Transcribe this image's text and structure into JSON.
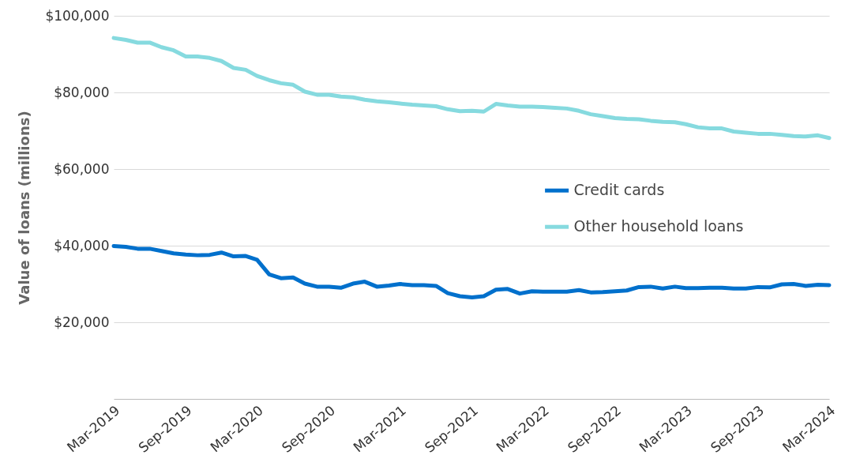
{
  "chart_data": {
    "type": "line",
    "ylabel": "Value of loans (millions)",
    "x": [
      "2019-03",
      "2019-04",
      "2019-05",
      "2019-06",
      "2019-07",
      "2019-08",
      "2019-09",
      "2019-10",
      "2019-11",
      "2019-12",
      "2020-01",
      "2020-02",
      "2020-03",
      "2020-04",
      "2020-05",
      "2020-06",
      "2020-07",
      "2020-08",
      "2020-09",
      "2020-10",
      "2020-11",
      "2020-12",
      "2021-01",
      "2021-02",
      "2021-03",
      "2021-04",
      "2021-05",
      "2021-06",
      "2021-07",
      "2021-08",
      "2021-09",
      "2021-10",
      "2021-11",
      "2021-12",
      "2022-01",
      "2022-02",
      "2022-03",
      "2022-04",
      "2022-05",
      "2022-06",
      "2022-07",
      "2022-08",
      "2022-09",
      "2022-10",
      "2022-11",
      "2022-12",
      "2023-01",
      "2023-02",
      "2023-03",
      "2023-04",
      "2023-05",
      "2023-06",
      "2023-07",
      "2023-08",
      "2023-09",
      "2023-10",
      "2023-11",
      "2023-12",
      "2024-01",
      "2024-02",
      "2024-03"
    ],
    "series": [
      {
        "name": "Credit cards",
        "color": "#0070cc",
        "values": [
          39900,
          39700,
          39200,
          39200,
          38600,
          38000,
          37700,
          37500,
          37600,
          38200,
          37200,
          37300,
          36300,
          32500,
          31500,
          31700,
          30100,
          29300,
          29300,
          29000,
          30100,
          30600,
          29300,
          29600,
          30000,
          29700,
          29700,
          29500,
          27600,
          26800,
          26500,
          26800,
          28500,
          28700,
          27500,
          28100,
          28000,
          28000,
          28000,
          28400,
          27800,
          27900,
          28100,
          28300,
          29200,
          29300,
          28800,
          29300,
          28900,
          28900,
          29000,
          29000,
          28800,
          28800,
          29200,
          29100,
          29900,
          30000,
          29500,
          29800,
          29700
        ]
      },
      {
        "name": "Other household loans",
        "color": "#86dadf",
        "values": [
          94200,
          93700,
          93000,
          93000,
          91800,
          91000,
          89400,
          89400,
          89000,
          88200,
          86400,
          85900,
          84300,
          83200,
          82400,
          82000,
          80200,
          79400,
          79400,
          78900,
          78700,
          78100,
          77700,
          77400,
          77100,
          76800,
          76600,
          76400,
          75600,
          75100,
          75200,
          75000,
          77000,
          76600,
          76300,
          76300,
          76200,
          76000,
          75800,
          75200,
          74300,
          73800,
          73300,
          73100,
          73000,
          72600,
          72300,
          72200,
          71700,
          70900,
          70600,
          70600,
          69800,
          69500,
          69200,
          69200,
          68900,
          68600,
          68500,
          68800,
          68100
        ]
      }
    ],
    "xlim": [
      "2019-03",
      "2024-03"
    ],
    "xticks": [
      {
        "value": "2019-03",
        "label": "Mar-2019"
      },
      {
        "value": "2019-09",
        "label": "Sep-2019"
      },
      {
        "value": "2020-03",
        "label": "Mar-2020"
      },
      {
        "value": "2020-09",
        "label": "Sep-2020"
      },
      {
        "value": "2021-03",
        "label": "Mar-2021"
      },
      {
        "value": "2021-09",
        "label": "Sep-2021"
      },
      {
        "value": "2022-03",
        "label": "Mar-2022"
      },
      {
        "value": "2022-09",
        "label": "Sep-2022"
      },
      {
        "value": "2023-03",
        "label": "Mar-2023"
      },
      {
        "value": "2023-09",
        "label": "Sep-2023"
      },
      {
        "value": "2024-03",
        "label": "Mar-2024"
      }
    ],
    "ylim": [
      0,
      100000
    ],
    "yticks": [
      {
        "value": 20000,
        "label": "$20,000"
      },
      {
        "value": 40000,
        "label": "$40,000"
      },
      {
        "value": 60000,
        "label": "$60,000"
      },
      {
        "value": 80000,
        "label": "$80,000"
      },
      {
        "value": 100000,
        "label": "$100,000"
      }
    ],
    "grid": "y",
    "legend": "right",
    "line_style": "solid",
    "marker": "none"
  }
}
